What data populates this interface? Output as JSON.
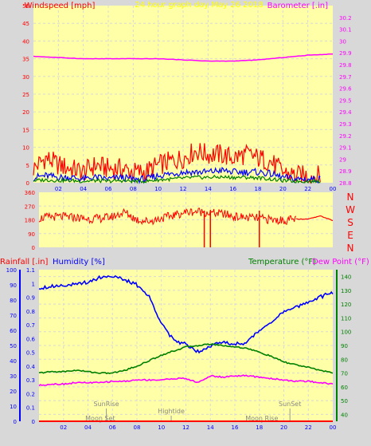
{
  "chart_data": [
    {
      "id": "wind_baro",
      "type": "line",
      "title": "24 hour graph day   May 26 2018",
      "left_axis": {
        "label": "Windspeed [mph]",
        "min": 0,
        "max": 50,
        "ticks": [
          0,
          5,
          10,
          15,
          20,
          25,
          30,
          35,
          40,
          45,
          50
        ]
      },
      "right_axis": {
        "label": "Barometer [.in]",
        "min": 28.8,
        "max": 30.3,
        "ticks": [
          "28.8",
          "28.9",
          "29",
          "29.1",
          "29.2",
          "29.3",
          "29.4",
          "29.5",
          "29.6",
          "29.7",
          "29.8",
          "29.9",
          "30",
          "30.1",
          "30.2"
        ]
      },
      "x_ticks": [
        "02",
        "04",
        "06",
        "08",
        "10",
        "12",
        "14",
        "16",
        "18",
        "20",
        "22",
        "00"
      ],
      "x_range": [
        0,
        24
      ],
      "series": [
        {
          "key": "gust",
          "color": "#ff0000",
          "axis": "left",
          "kind": "wind-gust",
          "x": [
            0,
            1,
            2,
            3,
            4,
            5,
            6,
            7,
            8,
            9,
            10,
            11,
            12,
            13,
            14,
            15,
            16,
            17,
            18,
            19,
            20,
            21,
            22,
            23
          ],
          "y": [
            4,
            7,
            5,
            4,
            3,
            5,
            4,
            4,
            3,
            3,
            5,
            6,
            7,
            9,
            8,
            8,
            7,
            8,
            7,
            6,
            3,
            2,
            2,
            2
          ]
        },
        {
          "key": "speed",
          "color": "#0000ff",
          "axis": "left",
          "kind": "wind-avg",
          "x": [
            0,
            1,
            2,
            3,
            4,
            5,
            6,
            7,
            8,
            9,
            10,
            11,
            12,
            13,
            14,
            15,
            16,
            17,
            18,
            19,
            20,
            21,
            22,
            23
          ],
          "y": [
            1.5,
            2,
            1.5,
            1.5,
            1,
            1.5,
            1,
            1.5,
            1,
            1,
            2,
            2.5,
            3,
            3,
            3,
            3.5,
            3,
            3,
            3,
            2.5,
            1.5,
            1,
            1,
            1
          ]
        },
        {
          "key": "avg",
          "color": "#008000",
          "axis": "left",
          "kind": "wind-smooth",
          "x": [
            0,
            1,
            2,
            3,
            4,
            5,
            6,
            7,
            8,
            9,
            10,
            11,
            12,
            13,
            14,
            15,
            16,
            17,
            18,
            19,
            20,
            21,
            22,
            23
          ],
          "y": [
            0.6,
            0.8,
            0.6,
            0.6,
            0.4,
            0.6,
            0.4,
            0.6,
            0.4,
            0.4,
            0.8,
            1,
            1.3,
            1.5,
            1.5,
            1.6,
            1.5,
            1.5,
            1.4,
            1,
            0.6,
            0.4,
            0.4,
            0.4
          ]
        },
        {
          "key": "baro",
          "color": "#ff00ff",
          "axis": "right",
          "kind": "line",
          "x": [
            0,
            2,
            4,
            6,
            8,
            10,
            12,
            14,
            16,
            18,
            20,
            22,
            24
          ],
          "y": [
            29.87,
            29.86,
            29.85,
            29.85,
            29.85,
            29.85,
            29.84,
            29.83,
            29.83,
            29.84,
            29.86,
            29.88,
            29.89
          ]
        }
      ]
    },
    {
      "id": "wind_dir",
      "type": "line",
      "y_ticks": [
        "360",
        "270",
        "180",
        "90",
        "0"
      ],
      "y_range": [
        0,
        360
      ],
      "compass": [
        "N",
        "W",
        "S",
        "E",
        "N"
      ],
      "x_range": [
        0,
        24
      ],
      "series": [
        {
          "key": "dir",
          "color": "#ff0000",
          "kind": "direction",
          "x": [
            0,
            1,
            2,
            3,
            4,
            5,
            6,
            7,
            8,
            9,
            10,
            11,
            12,
            13,
            14,
            15,
            16,
            17,
            18,
            19,
            20,
            21,
            22,
            23,
            24
          ],
          "y": [
            190,
            200,
            200,
            195,
            185,
            190,
            200,
            230,
            180,
            170,
            190,
            210,
            230,
            235,
            225,
            220,
            200,
            195,
            190,
            180,
            175,
            185,
            185,
            205,
            175
          ]
        }
      ]
    },
    {
      "id": "temp_hum",
      "type": "line",
      "left_labels": {
        "rain": "Rainfall [.in]",
        "humidity": "Humidity [%]"
      },
      "right_labels": {
        "temperature": "Temperature (°F)",
        "dewpoint": "Dew Point (°F)"
      },
      "humidity_axis": {
        "min": 0,
        "max": 100,
        "ticks": [
          0,
          10,
          20,
          30,
          40,
          50,
          60,
          70,
          80,
          90,
          100
        ]
      },
      "rain_axis": {
        "min": 0,
        "max": 1.1,
        "ticks": [
          "0",
          "0.1",
          "0.2",
          "0.3",
          "0.4",
          "0.5",
          "0.6",
          "0.7",
          "0.8",
          "0.9",
          "1",
          "1.1"
        ]
      },
      "temp_axis": {
        "min": 35,
        "max": 145,
        "ticks": [
          40,
          50,
          60,
          70,
          80,
          90,
          100,
          110,
          120,
          130,
          140
        ]
      },
      "x_ticks": [
        "02",
        "04",
        "06",
        "08",
        "10",
        "12",
        "14",
        "16",
        "18",
        "20",
        "22",
        "00"
      ],
      "x_range": [
        0,
        24
      ],
      "events": [
        {
          "label": "SunRise",
          "x": 5.5,
          "row": "upper"
        },
        {
          "label": "Moon Set",
          "x": 5.0,
          "row": "lower"
        },
        {
          "label": "Hightide",
          "x": 10.8,
          "row": "middle"
        },
        {
          "label": "Moon Rise",
          "x": 18.2,
          "row": "lower"
        },
        {
          "label": "SunSet",
          "x": 20.5,
          "row": "upper"
        }
      ],
      "series": [
        {
          "key": "humidity",
          "color": "#0000ff",
          "axis": "humidity",
          "kind": "line",
          "x": [
            0,
            1,
            2,
            3,
            4,
            5,
            6,
            7,
            8,
            9,
            10,
            11,
            12,
            13,
            14,
            15,
            16,
            17,
            18,
            19,
            20,
            21,
            22,
            23,
            24
          ],
          "y": [
            88,
            89,
            90,
            90,
            92,
            95,
            96,
            93,
            90,
            82,
            65,
            53,
            51,
            46,
            50,
            52,
            51,
            52,
            60,
            66,
            72,
            75,
            79,
            82,
            85
          ]
        },
        {
          "key": "temperature",
          "color": "#008000",
          "axis": "temp",
          "kind": "line",
          "x": [
            0,
            1,
            2,
            3,
            4,
            5,
            6,
            7,
            8,
            9,
            10,
            11,
            12,
            13,
            14,
            15,
            16,
            17,
            18,
            19,
            20,
            21,
            22,
            23,
            24
          ],
          "y": [
            70,
            71,
            71,
            72,
            71,
            70,
            70,
            72,
            75,
            79,
            83,
            86,
            89,
            90,
            91,
            90,
            89,
            88,
            85,
            82,
            78,
            76,
            74,
            72,
            70
          ]
        },
        {
          "key": "dewpoint",
          "color": "#ff00ff",
          "axis": "temp",
          "kind": "line",
          "x": [
            0,
            1,
            2,
            3,
            4,
            5,
            6,
            7,
            8,
            9,
            10,
            11,
            12,
            13,
            14,
            15,
            16,
            17,
            18,
            19,
            20,
            21,
            22,
            23,
            24
          ],
          "y": [
            61,
            62,
            62,
            63,
            63,
            63,
            64,
            64,
            65,
            65,
            65,
            66,
            66,
            63,
            68,
            67,
            68,
            68,
            67,
            66,
            65,
            64,
            64,
            63,
            62
          ]
        },
        {
          "key": "rain",
          "color": "#ff0000",
          "axis": "rain",
          "kind": "line",
          "x": [
            0,
            24
          ],
          "y": [
            0,
            0
          ]
        }
      ]
    }
  ]
}
